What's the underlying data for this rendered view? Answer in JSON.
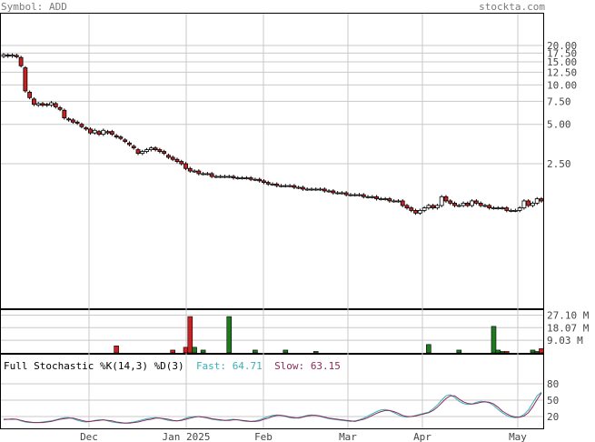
{
  "header": {
    "symbol_text": "Symbol: ADD",
    "site": "stockta.com"
  },
  "colors": {
    "up": "#ffffff",
    "down": "#cc2222",
    "wick": "#000000",
    "grid": "#c8c8c8",
    "volume": "#1f7a1f",
    "volume_down": "#cc2222",
    "fast_line": "#3ab0b8",
    "slow_line": "#8b2a5a"
  },
  "stochastic": {
    "title": "Full Stochastic %K(14,3) %D(3)",
    "fast_label": "Fast:",
    "fast_value": "64.71",
    "slow_label": "Slow:",
    "slow_value": "63.15"
  },
  "chart_data": [
    {
      "type": "candlestick",
      "title": "Symbol: ADD",
      "y_scale": "log",
      "y_ticks": [
        "20.00",
        "17.50",
        "15.00",
        "12.50",
        "10.00",
        "7.50",
        "5.00",
        "2.50"
      ],
      "x_ticks": [
        "Dec",
        "Jan 2025",
        "Feb",
        "Mar",
        "Apr",
        "May"
      ],
      "grid": true,
      "closes": [
        17.0,
        16.6,
        16.9,
        16.4,
        14.0,
        9.0,
        8.0,
        7.1,
        7.2,
        7.0,
        7.0,
        7.3,
        6.8,
        6.5,
        5.6,
        5.4,
        5.2,
        5.1,
        4.8,
        4.6,
        4.3,
        4.5,
        4.2,
        4.5,
        4.3,
        4.2,
        4.0,
        3.9,
        3.7,
        3.5,
        3.3,
        3.0,
        3.1,
        3.2,
        3.3,
        3.2,
        3.1,
        3.0,
        2.8,
        2.7,
        2.6,
        2.5,
        2.3,
        2.2,
        2.2,
        2.1,
        2.1,
        2.1,
        2.0,
        2.0,
        2.0,
        2.0,
        2.0,
        1.95,
        1.95,
        1.95,
        1.95,
        1.9,
        1.9,
        1.85,
        1.8,
        1.75,
        1.75,
        1.7,
        1.7,
        1.7,
        1.7,
        1.65,
        1.65,
        1.6,
        1.6,
        1.6,
        1.6,
        1.6,
        1.55,
        1.55,
        1.5,
        1.5,
        1.5,
        1.45,
        1.45,
        1.45,
        1.45,
        1.4,
        1.4,
        1.4,
        1.35,
        1.35,
        1.35,
        1.3,
        1.3,
        1.3,
        1.2,
        1.15,
        1.1,
        1.05,
        1.1,
        1.15,
        1.2,
        1.15,
        1.2,
        1.4,
        1.3,
        1.25,
        1.2,
        1.2,
        1.25,
        1.2,
        1.3,
        1.25,
        1.2,
        1.2,
        1.15,
        1.15,
        1.15,
        1.15,
        1.1,
        1.1,
        1.1,
        1.15,
        1.3,
        1.2,
        1.25,
        1.35,
        1.3
      ],
      "opens": [
        16.5,
        16.9,
        16.6,
        16.8,
        16.2,
        13.5,
        8.8,
        7.8,
        7.0,
        7.2,
        7.1,
        7.0,
        7.2,
        6.7,
        6.4,
        5.5,
        5.4,
        5.2,
        5.0,
        4.7,
        4.6,
        4.3,
        4.4,
        4.2,
        4.4,
        4.4,
        4.1,
        4.0,
        3.8,
        3.6,
        3.4,
        3.2,
        3.0,
        3.1,
        3.2,
        3.3,
        3.2,
        3.1,
        2.9,
        2.8,
        2.7,
        2.6,
        2.5,
        2.3,
        2.2,
        2.2,
        2.1,
        2.1,
        2.1,
        2.0,
        2.0,
        2.0,
        2.0,
        2.0,
        1.95,
        1.95,
        1.95,
        1.95,
        1.9,
        1.9,
        1.85,
        1.8,
        1.75,
        1.75,
        1.7,
        1.7,
        1.7,
        1.7,
        1.65,
        1.65,
        1.6,
        1.6,
        1.6,
        1.6,
        1.6,
        1.55,
        1.55,
        1.5,
        1.5,
        1.5,
        1.45,
        1.45,
        1.45,
        1.45,
        1.4,
        1.4,
        1.4,
        1.35,
        1.35,
        1.35,
        1.3,
        1.3,
        1.3,
        1.2,
        1.15,
        1.1,
        1.05,
        1.1,
        1.15,
        1.2,
        1.15,
        1.2,
        1.4,
        1.3,
        1.25,
        1.2,
        1.2,
        1.25,
        1.2,
        1.3,
        1.25,
        1.2,
        1.2,
        1.15,
        1.15,
        1.15,
        1.15,
        1.1,
        1.1,
        1.1,
        1.15,
        1.3,
        1.2,
        1.25,
        1.35
      ]
    },
    {
      "type": "bar",
      "title": "Volume",
      "y_ticks": [
        "27.10 M",
        "18.07 M",
        "9.03 M"
      ],
      "values": [
        0,
        0,
        0,
        0,
        0,
        0,
        0,
        0,
        0,
        0,
        0,
        0,
        0,
        0,
        0,
        0,
        0,
        0,
        0,
        0,
        0,
        0,
        0,
        0,
        0,
        0,
        5,
        0,
        0,
        0,
        0,
        0,
        0,
        0,
        0,
        0,
        0,
        0,
        0,
        2,
        0,
        0,
        4,
        26,
        4,
        0,
        2,
        0,
        0,
        0,
        0,
        0,
        26,
        0,
        0,
        0,
        0,
        0,
        2,
        0,
        0,
        0,
        0,
        0,
        0,
        2,
        0,
        0,
        0,
        0,
        0,
        0,
        1,
        0,
        0,
        0,
        0,
        0,
        0,
        0,
        0,
        0,
        0,
        0,
        0,
        0,
        0,
        0,
        0,
        0,
        0,
        0,
        0,
        0,
        0,
        0,
        0,
        0,
        6,
        0,
        0,
        0,
        0,
        0,
        0,
        2,
        0,
        0,
        0,
        0,
        0,
        0,
        0,
        19,
        2,
        1,
        1,
        0,
        0,
        0,
        0,
        0,
        2,
        1,
        3
      ]
    },
    {
      "type": "line",
      "title": "Full Stochastic %K(14,3) %D(3)",
      "y_ticks": [
        "80",
        "50",
        "20"
      ],
      "series": [
        {
          "name": "Fast",
          "values": [
            14,
            15,
            16,
            15,
            12,
            10,
            9,
            9,
            9,
            10,
            11,
            12,
            14,
            16,
            18,
            18,
            16,
            13,
            11,
            10,
            11,
            13,
            14,
            14,
            12,
            10,
            9,
            8,
            8,
            9,
            10,
            12,
            14,
            16,
            17,
            18,
            17,
            15,
            13,
            12,
            12,
            14,
            17,
            19,
            20,
            20,
            19,
            17,
            15,
            14,
            13,
            13,
            14,
            15,
            14,
            12,
            11,
            11,
            12,
            14,
            17,
            20,
            22,
            23,
            22,
            20,
            18,
            17,
            18,
            20,
            22,
            23,
            22,
            20,
            18,
            16,
            15,
            14,
            13,
            12,
            11,
            12,
            14,
            17,
            21,
            25,
            29,
            32,
            33,
            31,
            27,
            23,
            20,
            19,
            20,
            22,
            24,
            26,
            28,
            34,
            41,
            50,
            58,
            60,
            55,
            48,
            44,
            42,
            43,
            46,
            48,
            47,
            45,
            40,
            33,
            27,
            22,
            19,
            18,
            19,
            24,
            32,
            45,
            58,
            64.71
          ]
        },
        {
          "name": "Slow",
          "values": [
            15,
            15,
            15,
            15,
            13,
            11,
            10,
            9,
            9,
            9,
            10,
            11,
            13,
            15,
            16,
            17,
            17,
            15,
            13,
            11,
            11,
            12,
            13,
            14,
            13,
            12,
            10,
            9,
            8,
            8,
            9,
            10,
            12,
            14,
            15,
            17,
            17,
            16,
            15,
            13,
            12,
            13,
            15,
            17,
            19,
            20,
            19,
            18,
            16,
            15,
            14,
            13,
            13,
            14,
            14,
            13,
            12,
            11,
            11,
            12,
            15,
            17,
            20,
            22,
            22,
            21,
            19,
            18,
            17,
            19,
            21,
            22,
            22,
            21,
            19,
            17,
            16,
            15,
            14,
            13,
            12,
            11,
            13,
            15,
            18,
            22,
            26,
            29,
            31,
            31,
            29,
            26,
            22,
            20,
            20,
            21,
            23,
            25,
            27,
            31,
            37,
            45,
            53,
            58,
            58,
            52,
            47,
            44,
            43,
            44,
            46,
            47,
            46,
            43,
            37,
            30,
            25,
            21,
            19,
            19,
            21,
            27,
            38,
            51,
            63.15
          ]
        }
      ]
    }
  ]
}
